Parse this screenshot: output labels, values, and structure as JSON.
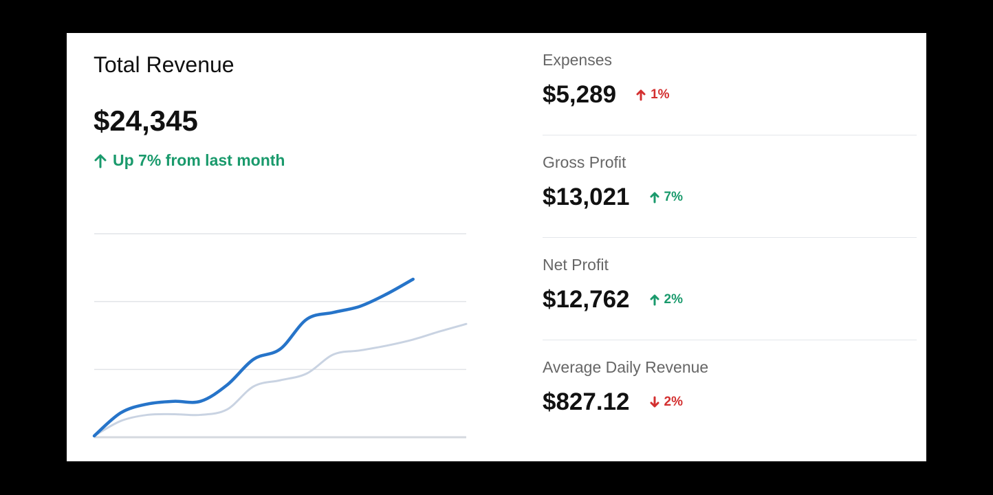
{
  "card": {
    "title": "Total Revenue",
    "value": "$24,345",
    "change": "Up 7% from last month"
  },
  "metrics": [
    {
      "label": "Expenses",
      "value": "$5,289",
      "change": "1%",
      "direction": "up",
      "tone": "negative"
    },
    {
      "label": "Gross Profit",
      "value": "$13,021",
      "change": "7%",
      "direction": "up",
      "tone": "positive"
    },
    {
      "label": "Net Profit",
      "value": "$12,762",
      "change": "2%",
      "direction": "up",
      "tone": "positive"
    },
    {
      "label": "Average Daily Revenue",
      "value": "$827.12",
      "change": "2%",
      "direction": "down",
      "tone": "negative"
    }
  ],
  "chart_data": {
    "type": "line",
    "x": [
      0,
      1,
      2,
      3,
      4,
      5,
      6,
      7,
      8,
      9,
      10,
      11,
      12,
      13,
      14
    ],
    "xlim": [
      0,
      14
    ],
    "ylim": [
      0,
      3
    ],
    "yticks": [
      0,
      1,
      2,
      3
    ],
    "grid": true,
    "series": [
      {
        "color": "#2674c9",
        "values": [
          0.02,
          0.36,
          0.49,
          0.53,
          0.53,
          0.77,
          1.15,
          1.3,
          1.74,
          1.84,
          1.93,
          2.11,
          2.33,
          null,
          null
        ]
      },
      {
        "color": "#c9d3e2",
        "values": [
          0.02,
          0.24,
          0.33,
          0.34,
          0.33,
          0.41,
          0.75,
          0.84,
          0.94,
          1.22,
          1.28,
          1.35,
          1.44,
          1.56,
          1.67
        ]
      }
    ]
  }
}
